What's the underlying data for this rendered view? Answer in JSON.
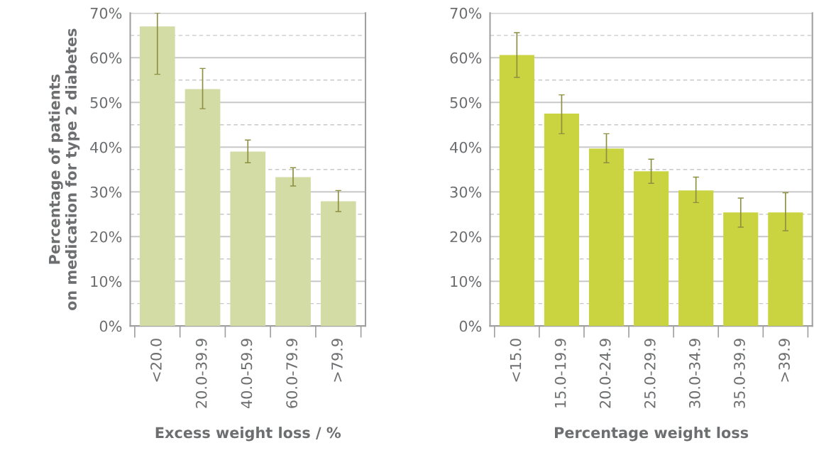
{
  "chart_data": [
    {
      "type": "bar",
      "ylabel": "Percentage of patients\non medication for type 2 diabetes",
      "xlabel": "Excess weight loss / %",
      "categories": [
        "<20.0",
        "20.0-39.9",
        "40.0-59.9",
        "60.0-79.9",
        ">79.9"
      ],
      "series": [
        {
          "color": "#d3dca4",
          "values": [
            67.0,
            53.0,
            39.0,
            33.3,
            27.9
          ],
          "errors": [
            [
              56.3,
              70.0
            ],
            [
              48.6,
              57.6
            ],
            [
              36.5,
              41.6
            ],
            [
              31.3,
              35.4
            ],
            [
              25.6,
              30.3
            ]
          ]
        }
      ],
      "ylim": [
        0,
        70
      ],
      "yticks": [
        {
          "value": 0,
          "label": "0%"
        },
        {
          "value": 5,
          "label": null
        },
        {
          "value": 10,
          "label": "10%"
        },
        {
          "value": 15,
          "label": null
        },
        {
          "value": 20,
          "label": "20%"
        },
        {
          "value": 25,
          "label": null
        },
        {
          "value": 30,
          "label": "30%"
        },
        {
          "value": 35,
          "label": null
        },
        {
          "value": 40,
          "label": "40%"
        },
        {
          "value": 45,
          "label": null
        },
        {
          "value": 50,
          "label": "50%"
        },
        {
          "value": 55,
          "label": null
        },
        {
          "value": 60,
          "label": "60%"
        },
        {
          "value": 65,
          "label": null
        },
        {
          "value": 70,
          "label": "70%"
        }
      ],
      "grid": "y",
      "legend": false
    },
    {
      "type": "bar",
      "xlabel": "Percentage weight loss",
      "categories": [
        "<15.0",
        "15.0-19.9",
        "20.0-24.9",
        "25.0-29.9",
        "30.0-34.9",
        "35.0-39.9",
        ">39.9"
      ],
      "series": [
        {
          "color": "#c9d440",
          "values": [
            60.6,
            47.5,
            39.7,
            34.6,
            30.3,
            25.4,
            25.4
          ],
          "errors": [
            [
              55.6,
              65.6
            ],
            [
              43.0,
              51.7
            ],
            [
              36.5,
              43.0
            ],
            [
              31.9,
              37.3
            ],
            [
              27.6,
              33.3
            ],
            [
              22.1,
              28.6
            ],
            [
              21.3,
              29.8
            ]
          ]
        }
      ],
      "ylim": [
        0,
        70
      ],
      "yticks": [
        {
          "value": 0,
          "label": "0%"
        },
        {
          "value": 5,
          "label": null
        },
        {
          "value": 10,
          "label": "10%"
        },
        {
          "value": 15,
          "label": null
        },
        {
          "value": 20,
          "label": "20%"
        },
        {
          "value": 25,
          "label": null
        },
        {
          "value": 30,
          "label": "30%"
        },
        {
          "value": 35,
          "label": null
        },
        {
          "value": 40,
          "label": "40%"
        },
        {
          "value": 45,
          "label": null
        },
        {
          "value": 50,
          "label": "50%"
        },
        {
          "value": 55,
          "label": null
        },
        {
          "value": 60,
          "label": "60%"
        },
        {
          "value": 65,
          "label": null
        },
        {
          "value": 70,
          "label": "70%"
        }
      ],
      "grid": "y",
      "legend": false
    }
  ]
}
